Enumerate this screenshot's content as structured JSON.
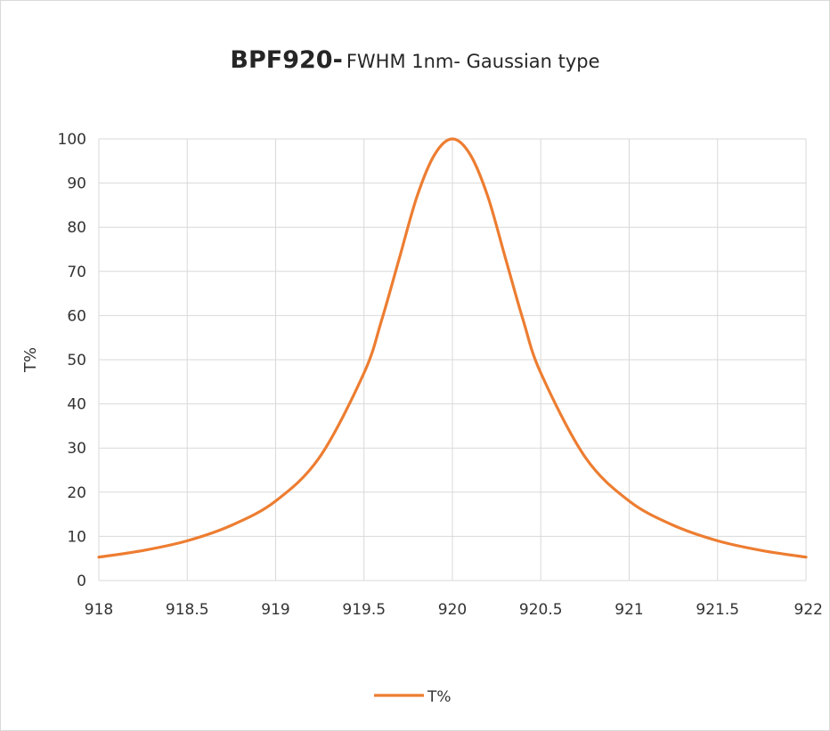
{
  "chart_data": {
    "type": "line",
    "title_bold": "BPF920-",
    "title_rest": "FWHM 1nm- Gaussian type",
    "xlabel": "",
    "ylabel": "T%",
    "xlim": [
      918,
      922
    ],
    "ylim": [
      0,
      100
    ],
    "x_ticks": [
      "918",
      "918.5",
      "919",
      "919.5",
      "920",
      "920.5",
      "921",
      "921.5",
      "922"
    ],
    "x_tick_values": [
      918,
      918.5,
      919,
      919.5,
      920,
      920.5,
      921,
      921.5,
      922
    ],
    "y_ticks": [
      "0",
      "10",
      "20",
      "30",
      "40",
      "50",
      "60",
      "70",
      "80",
      "90",
      "100"
    ],
    "y_tick_values": [
      0,
      10,
      20,
      30,
      40,
      50,
      60,
      70,
      80,
      90,
      100
    ],
    "grid": true,
    "legend_position": "bottom",
    "series": [
      {
        "name": "T%",
        "color": "#ED7D31",
        "x": [
          918.0,
          918.25,
          918.5,
          918.75,
          919.0,
          919.25,
          919.5,
          919.6,
          919.7,
          919.8,
          919.9,
          920.0,
          920.1,
          920.2,
          920.3,
          920.4,
          920.5,
          920.75,
          921.0,
          921.25,
          921.5,
          921.75,
          922.0
        ],
        "y": [
          5.3,
          6.8,
          9.0,
          12.5,
          18.0,
          28.0,
          47.0,
          59.0,
          73.0,
          87.0,
          96.5,
          100.0,
          96.5,
          87.0,
          73.0,
          59.0,
          47.0,
          28.0,
          18.0,
          12.5,
          9.0,
          6.8,
          5.3
        ]
      }
    ]
  }
}
